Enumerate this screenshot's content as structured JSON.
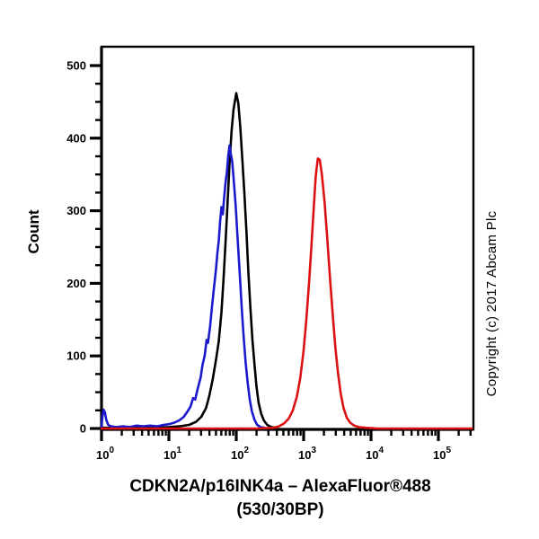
{
  "title_line1": "CDKN2A/p16INK4a – AlexaFluor®488",
  "title_line2": "(530/30BP)",
  "copyright": "Copyright (c) 2017 Abcam Plc",
  "chart": {
    "ylabel": "Count"
  },
  "chart_data": {
    "type": "line",
    "subtype": "flow-cytometry-histogram",
    "title": "CDKN2A/p16INK4a – AlexaFluor®488 (530/30BP)",
    "xlabel": "CDKN2A/p16INK4a – AlexaFluor®488 (530/30BP)",
    "ylabel": "Count",
    "x_scale": "log10",
    "x_decade_range": [
      0,
      5.52
    ],
    "x_major_tick_exponents": [
      0,
      1,
      2,
      3,
      4,
      5
    ],
    "x_tick_labels": [
      "10^0",
      "10^1",
      "10^2",
      "10^3",
      "10^4",
      "10^5"
    ],
    "y_ticks": [
      0,
      100,
      200,
      300,
      400,
      500
    ],
    "y_minor_step": 25,
    "ylim": [
      0,
      525
    ],
    "grid": false,
    "legend": false,
    "series": [
      {
        "name": "black-histogram",
        "color": "#000000",
        "peak": {
          "x": 100,
          "count": 462
        },
        "points": [
          [
            0.02,
            1
          ],
          [
            0.35,
            1
          ],
          [
            0.7,
            1
          ],
          [
            1.0,
            2
          ],
          [
            1.15,
            3
          ],
          [
            1.3,
            5
          ],
          [
            1.4,
            9
          ],
          [
            1.48,
            16
          ],
          [
            1.55,
            28
          ],
          [
            1.6,
            45
          ],
          [
            1.65,
            68
          ],
          [
            1.7,
            95
          ],
          [
            1.74,
            120
          ],
          [
            1.78,
            160
          ],
          [
            1.81,
            205
          ],
          [
            1.84,
            255
          ],
          [
            1.87,
            310
          ],
          [
            1.9,
            365
          ],
          [
            1.93,
            410
          ],
          [
            1.96,
            440
          ],
          [
            2.0,
            462
          ],
          [
            2.03,
            448
          ],
          [
            2.06,
            415
          ],
          [
            2.09,
            370
          ],
          [
            2.12,
            325
          ],
          [
            2.15,
            272
          ],
          [
            2.18,
            215
          ],
          [
            2.21,
            165
          ],
          [
            2.24,
            122
          ],
          [
            2.27,
            88
          ],
          [
            2.3,
            58
          ],
          [
            2.33,
            36
          ],
          [
            2.37,
            20
          ],
          [
            2.41,
            11
          ],
          [
            2.46,
            5
          ],
          [
            2.52,
            2
          ],
          [
            2.6,
            1
          ]
        ]
      },
      {
        "name": "blue-histogram",
        "color": "#1a1acc",
        "peak": {
          "x": 80,
          "count": 390
        },
        "points": [
          [
            0.0,
            2
          ],
          [
            0.01,
            14
          ],
          [
            0.03,
            26
          ],
          [
            0.05,
            22
          ],
          [
            0.07,
            12
          ],
          [
            0.1,
            5
          ],
          [
            0.14,
            3
          ],
          [
            0.22,
            2
          ],
          [
            0.32,
            3
          ],
          [
            0.42,
            2
          ],
          [
            0.52,
            4
          ],
          [
            0.62,
            3
          ],
          [
            0.72,
            4
          ],
          [
            0.82,
            3
          ],
          [
            0.92,
            5
          ],
          [
            1.0,
            6
          ],
          [
            1.08,
            8
          ],
          [
            1.15,
            11
          ],
          [
            1.22,
            16
          ],
          [
            1.28,
            24
          ],
          [
            1.32,
            30
          ],
          [
            1.36,
            42
          ],
          [
            1.39,
            40
          ],
          [
            1.43,
            56
          ],
          [
            1.47,
            70
          ],
          [
            1.5,
            88
          ],
          [
            1.53,
            100
          ],
          [
            1.56,
            122
          ],
          [
            1.58,
            118
          ],
          [
            1.61,
            140
          ],
          [
            1.64,
            168
          ],
          [
            1.67,
            195
          ],
          [
            1.7,
            220
          ],
          [
            1.72,
            242
          ],
          [
            1.74,
            258
          ],
          [
            1.76,
            285
          ],
          [
            1.78,
            305
          ],
          [
            1.8,
            295
          ],
          [
            1.82,
            318
          ],
          [
            1.84,
            338
          ],
          [
            1.86,
            352
          ],
          [
            1.88,
            375
          ],
          [
            1.9,
            390
          ],
          [
            1.92,
            378
          ],
          [
            1.94,
            368
          ],
          [
            1.96,
            345
          ],
          [
            1.99,
            308
          ],
          [
            2.02,
            262
          ],
          [
            2.05,
            215
          ],
          [
            2.08,
            168
          ],
          [
            2.11,
            125
          ],
          [
            2.14,
            90
          ],
          [
            2.17,
            62
          ],
          [
            2.2,
            40
          ],
          [
            2.23,
            24
          ],
          [
            2.27,
            12
          ],
          [
            2.31,
            5
          ],
          [
            2.36,
            2
          ],
          [
            2.42,
            1
          ]
        ]
      },
      {
        "name": "red-histogram",
        "color": "#dd1111",
        "peak": {
          "x": 1585,
          "count": 375
        },
        "points": [
          [
            0.0,
            0
          ],
          [
            0.6,
            0
          ],
          [
            1.2,
            0
          ],
          [
            1.8,
            0
          ],
          [
            2.3,
            0
          ],
          [
            2.55,
            1
          ],
          [
            2.63,
            3
          ],
          [
            2.71,
            7
          ],
          [
            2.78,
            14
          ],
          [
            2.84,
            25
          ],
          [
            2.9,
            44
          ],
          [
            2.95,
            70
          ],
          [
            3.0,
            108
          ],
          [
            3.04,
            150
          ],
          [
            3.08,
            200
          ],
          [
            3.12,
            258
          ],
          [
            3.15,
            305
          ],
          [
            3.18,
            348
          ],
          [
            3.21,
            372
          ],
          [
            3.24,
            370
          ],
          [
            3.27,
            350
          ],
          [
            3.31,
            312
          ],
          [
            3.35,
            262
          ],
          [
            3.39,
            208
          ],
          [
            3.43,
            158
          ],
          [
            3.47,
            112
          ],
          [
            3.51,
            76
          ],
          [
            3.55,
            48
          ],
          [
            3.59,
            29
          ],
          [
            3.64,
            15
          ],
          [
            3.69,
            8
          ],
          [
            3.75,
            4
          ],
          [
            3.82,
            2
          ],
          [
            3.92,
            1
          ],
          [
            4.1,
            0
          ],
          [
            4.6,
            0
          ],
          [
            5.1,
            0
          ],
          [
            5.5,
            0
          ]
        ]
      }
    ]
  }
}
